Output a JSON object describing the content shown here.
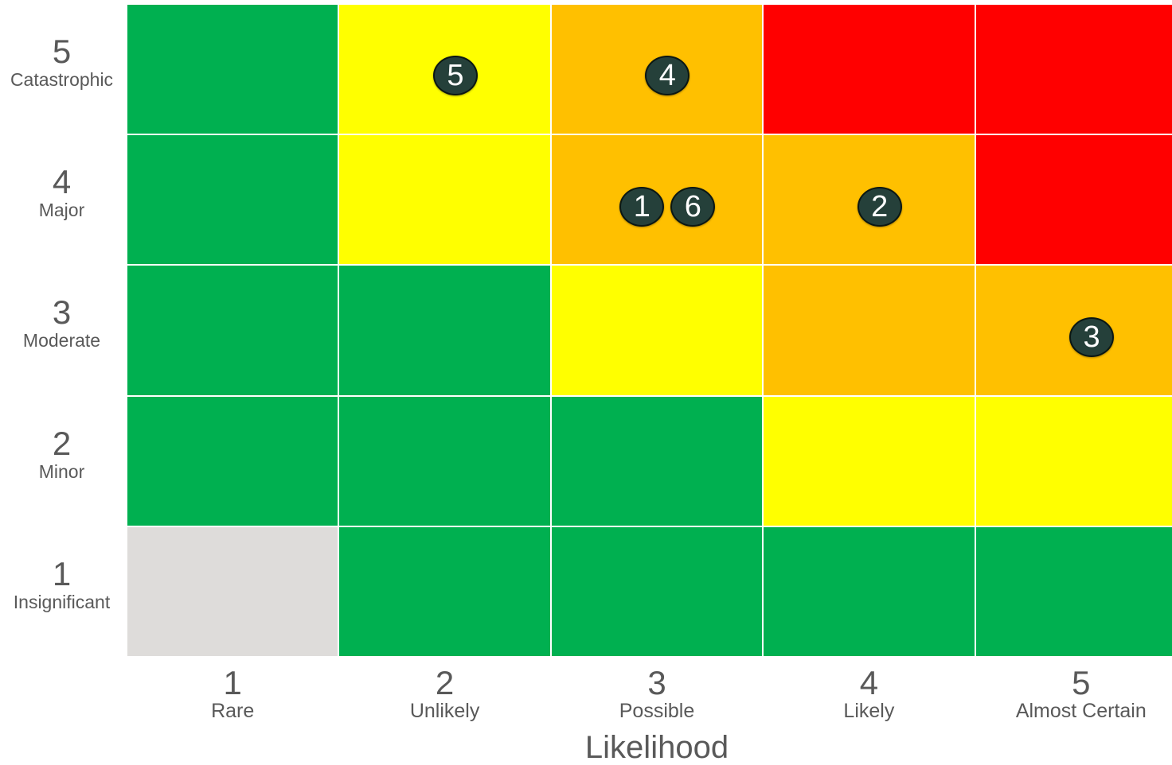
{
  "chart_data": {
    "type": "heatmap",
    "xlabel": "Likelihood",
    "ylabel": "",
    "columns": [
      {
        "level": "1",
        "name": "Rare"
      },
      {
        "level": "2",
        "name": "Unlikely"
      },
      {
        "level": "3",
        "name": "Possible"
      },
      {
        "level": "4",
        "name": "Likely"
      },
      {
        "level": "5",
        "name": "Almost Certain"
      }
    ],
    "rows": [
      {
        "level": "5",
        "name": "Catastrophic"
      },
      {
        "level": "4",
        "name": "Major"
      },
      {
        "level": "3",
        "name": "Moderate"
      },
      {
        "level": "2",
        "name": "Minor"
      },
      {
        "level": "1",
        "name": "Insignificant"
      }
    ],
    "cell_colors": [
      [
        "#00b050",
        "#ffff00",
        "#ffc000",
        "#ff0000",
        "#ff0000"
      ],
      [
        "#00b050",
        "#ffff00",
        "#ffc000",
        "#ffc000",
        "#ff0000"
      ],
      [
        "#00b050",
        "#00b050",
        "#ffff00",
        "#ffc000",
        "#ffc000"
      ],
      [
        "#00b050",
        "#00b050",
        "#00b050",
        "#ffff00",
        "#ffff00"
      ],
      [
        "#dedcda",
        "#00b050",
        "#00b050",
        "#00b050",
        "#00b050"
      ]
    ],
    "markers": [
      {
        "label": "5",
        "likelihood": 2,
        "consequence": 5
      },
      {
        "label": "4",
        "likelihood": 3,
        "consequence": 5
      },
      {
        "label": "1",
        "likelihood": 3,
        "consequence": 4
      },
      {
        "label": "6",
        "likelihood": 3,
        "consequence": 4
      },
      {
        "label": "2",
        "likelihood": 4,
        "consequence": 4
      },
      {
        "label": "3",
        "likelihood": 5,
        "consequence": 3
      }
    ]
  }
}
